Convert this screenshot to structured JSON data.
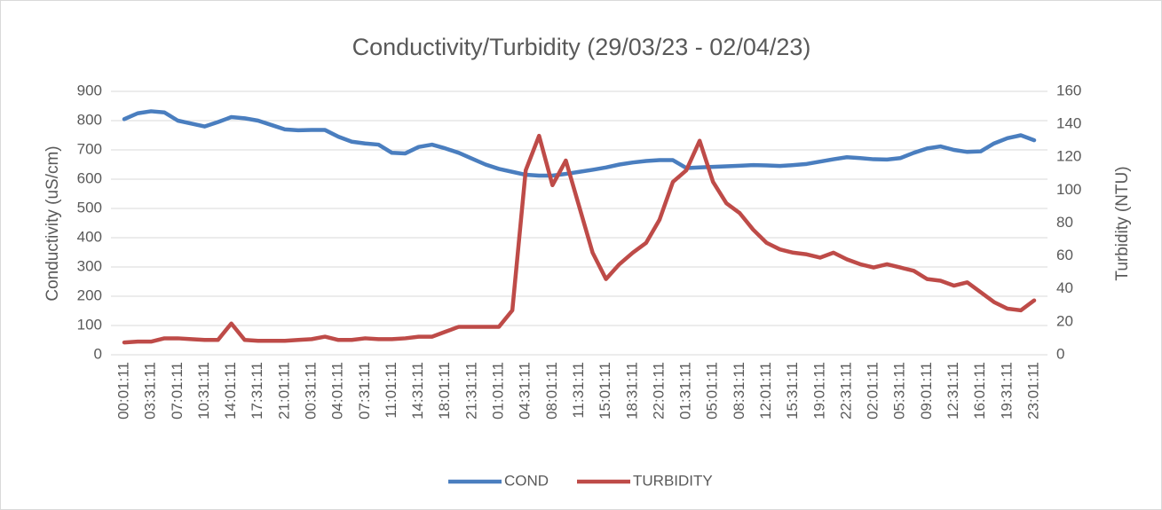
{
  "chart_data": {
    "type": "line",
    "title": "Conductivity/Turbidity (29/03/23 - 02/04/23)",
    "y_label": "Conductivity (uS/cm)",
    "y2_label": "Turbidity (NTU)",
    "categories": [
      "00:01:11",
      null,
      "03:31:11",
      null,
      "07:01:11",
      null,
      "10:31:11",
      null,
      "14:01:11",
      null,
      "17:31:11",
      null,
      "21:01:11",
      null,
      "00:31:11",
      null,
      "04:01:11",
      null,
      "07:31:11",
      null,
      "11:01:11",
      null,
      "14:31:11",
      null,
      "18:01:11",
      null,
      "21:31:11",
      null,
      "01:01:11",
      null,
      "04:31:11",
      null,
      "08:01:11",
      null,
      "11:31:11",
      null,
      "15:01:11",
      null,
      "18:31:11",
      null,
      "22:01:11",
      null,
      "01:31:11",
      null,
      "05:01:11",
      null,
      "08:31:11",
      null,
      "12:01:11",
      null,
      "15:31:11",
      null,
      "19:01:11",
      null,
      "22:31:11",
      null,
      "02:01:11",
      null,
      "05:31:11",
      null,
      "09:01:11",
      null,
      "12:31:11",
      null,
      "16:01:11",
      null,
      "19:31:11",
      null,
      "23:01:11"
    ],
    "series": [
      {
        "name": "COND",
        "color": "#4a7ebf",
        "values": [
          805,
          825,
          832,
          828,
          800,
          790,
          780,
          795,
          812,
          808,
          800,
          785,
          770,
          767,
          768,
          768,
          745,
          728,
          722,
          718,
          690,
          688,
          710,
          718,
          705,
          690,
          670,
          650,
          635,
          625,
          615,
          612,
          612,
          618,
          625,
          632,
          640,
          650,
          657,
          662,
          665,
          665,
          638,
          640,
          642,
          644,
          646,
          648,
          647,
          645,
          648,
          652,
          660,
          668,
          675,
          672,
          668,
          667,
          672,
          690,
          705,
          712,
          700,
          693,
          695,
          722,
          740,
          750,
          733
        ]
      },
      {
        "name": "TURBIDITY",
        "color": "#be4b48",
        "axis": "y2",
        "values": [
          7.5,
          8,
          8,
          10,
          10,
          9.5,
          9,
          9,
          19,
          9,
          8.5,
          8.5,
          8.5,
          9,
          9.5,
          11,
          9,
          9,
          10,
          9.5,
          9.5,
          10,
          11,
          11,
          14,
          17,
          17,
          17,
          17,
          27,
          112,
          133,
          103,
          118,
          90,
          62,
          46,
          55,
          62,
          68,
          82,
          105,
          112,
          130,
          105,
          92,
          86,
          76,
          68,
          64,
          62,
          61,
          59,
          62,
          58,
          55,
          53,
          55,
          53,
          51,
          46,
          45,
          42,
          44,
          38,
          32,
          28,
          27,
          33
        ]
      }
    ],
    "ylim": [
      0,
      900
    ],
    "yticks": [
      0,
      100,
      200,
      300,
      400,
      500,
      600,
      700,
      800,
      900
    ],
    "y2lim": [
      0,
      160
    ],
    "y2ticks": [
      0,
      20,
      40,
      60,
      80,
      100,
      120,
      140,
      160
    ],
    "grid": true,
    "legend": "bottom"
  }
}
